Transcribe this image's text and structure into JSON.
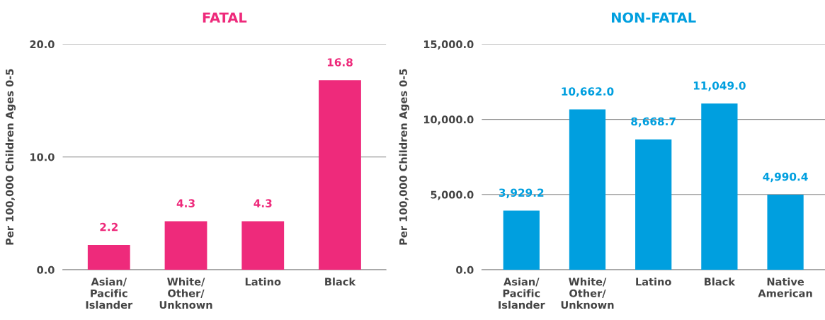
{
  "chart_data": [
    {
      "type": "bar",
      "title": "FATAL",
      "ylabel": "Per 100,000 Children Ages 0-5",
      "categories": [
        "Asian/\nPacific\nIslander",
        "White/\nOther/\nUnknown",
        "Latino",
        "Black"
      ],
      "values": [
        2.2,
        4.3,
        4.3,
        16.8
      ],
      "color": "#ee2a7b",
      "value_labels": [
        "2.2",
        "4.3",
        "4.3",
        "16.8"
      ],
      "ylim": [
        0,
        20
      ],
      "yticks": [
        {
          "value": 0,
          "label": "0.0"
        },
        {
          "value": 10,
          "label": "10.0"
        },
        {
          "value": 20,
          "label": "20.0"
        }
      ],
      "grid": "y"
    },
    {
      "type": "bar",
      "title": "NON-FATAL",
      "ylabel": "Per 100,000 Children Ages 0-5",
      "categories": [
        "Asian/\nPacific\nIslander",
        "White/\nOther/\nUnknown",
        "Latino",
        "Black",
        "Native\nAmerican"
      ],
      "values": [
        3929.2,
        10662.0,
        8668.7,
        11049.0,
        4990.4
      ],
      "color": "#009fdf",
      "value_labels": [
        "3,929.2",
        "10,662.0",
        "8,668.7",
        "11,049.0",
        "4,990.4"
      ],
      "ylim": [
        0,
        15000
      ],
      "yticks": [
        {
          "value": 0,
          "label": "0.0"
        },
        {
          "value": 5000,
          "label": "5,000.0"
        },
        {
          "value": 10000,
          "label": "10,000.0"
        },
        {
          "value": 15000,
          "label": "15,000.0"
        }
      ],
      "grid": "y"
    }
  ]
}
